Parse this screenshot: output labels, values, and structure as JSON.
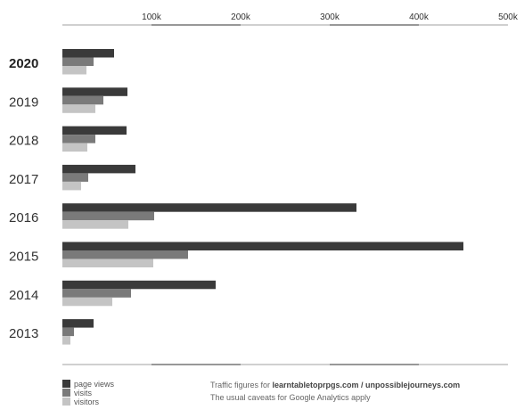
{
  "chart_data": {
    "type": "bar",
    "orientation": "horizontal",
    "categories": [
      "2020",
      "2019",
      "2018",
      "2017",
      "2016",
      "2015",
      "2014",
      "2013"
    ],
    "highlighted_category": "2020",
    "series": [
      {
        "name": "page views",
        "color": "#3a3a3a",
        "values": [
          58000,
          73000,
          72000,
          82000,
          330000,
          450000,
          172000,
          35000
        ]
      },
      {
        "name": "visits",
        "color": "#7a7a7a",
        "values": [
          35000,
          46000,
          37000,
          29000,
          103000,
          141000,
          77000,
          13000
        ]
      },
      {
        "name": "visitors",
        "color": "#c4c4c4",
        "values": [
          27000,
          37000,
          28000,
          21000,
          74000,
          102000,
          56000,
          9000
        ]
      }
    ],
    "xlim": [
      0,
      500000
    ],
    "x_ticks": [
      {
        "value": 100000,
        "label": "100k"
      },
      {
        "value": 200000,
        "label": "200k"
      },
      {
        "value": 300000,
        "label": "300k"
      },
      {
        "value": 400000,
        "label": "400k"
      },
      {
        "value": 500000,
        "label": "500k"
      }
    ],
    "legend_position": "bottom-left",
    "grid": false
  },
  "credits": {
    "line1_prefix": "Traffic figures for ",
    "line1_sites": "learntabletoprpgs.com / unpossiblejourneys.com",
    "line2": "The usual caveats for Google Analytics apply"
  }
}
